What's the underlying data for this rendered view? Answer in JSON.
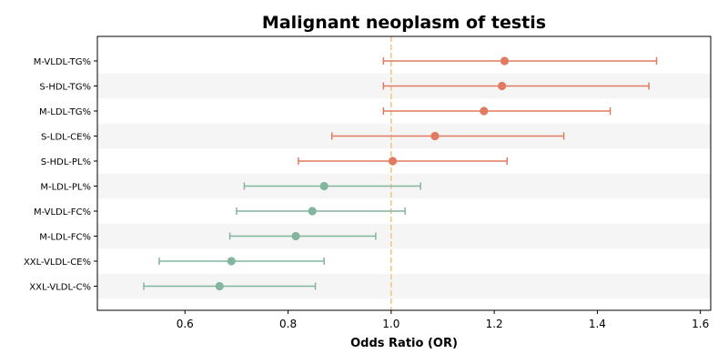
{
  "chart_data": {
    "type": "forest",
    "title": "Malignant neoplasm of testis",
    "xlabel": "Odds Ratio (OR)",
    "ylabel": "",
    "xlim": [
      0.43,
      1.62
    ],
    "xticks": [
      0.6,
      0.8,
      1.0,
      1.2,
      1.4,
      1.6
    ],
    "xtick_labels": [
      "0.6",
      "0.8",
      "1.0",
      "1.2",
      "1.4",
      "1.6"
    ],
    "reference_line": 1.0,
    "colors": {
      "risk": "#E07B61",
      "protective": "#82B69E",
      "reference": "#F2C47A",
      "band": "#F5F5F5"
    },
    "rows": [
      {
        "label": "M-VLDL-TG%",
        "or": 1.22,
        "lower": 0.985,
        "upper": 1.515,
        "group": "risk"
      },
      {
        "label": "S-HDL-TG%",
        "or": 1.215,
        "lower": 0.985,
        "upper": 1.5,
        "group": "risk"
      },
      {
        "label": "M-LDL-TG%",
        "or": 1.18,
        "lower": 0.985,
        "upper": 1.425,
        "group": "risk"
      },
      {
        "label": "S-LDL-CE%",
        "or": 1.085,
        "lower": 0.885,
        "upper": 1.335,
        "group": "risk"
      },
      {
        "label": "S-HDL-PL%",
        "or": 1.003,
        "lower": 0.82,
        "upper": 1.225,
        "group": "risk"
      },
      {
        "label": "M-LDL-PL%",
        "or": 0.87,
        "lower": 0.715,
        "upper": 1.057,
        "group": "protective"
      },
      {
        "label": "M-VLDL-FC%",
        "or": 0.847,
        "lower": 0.7,
        "upper": 1.027,
        "group": "protective"
      },
      {
        "label": "M-LDL-FC%",
        "or": 0.815,
        "lower": 0.687,
        "upper": 0.97,
        "group": "protective"
      },
      {
        "label": "XXL-VLDL-CE%",
        "or": 0.69,
        "lower": 0.55,
        "upper": 0.87,
        "group": "protective"
      },
      {
        "label": "XXL-VLDL-C%",
        "or": 0.667,
        "lower": 0.52,
        "upper": 0.853,
        "group": "protective"
      }
    ]
  }
}
